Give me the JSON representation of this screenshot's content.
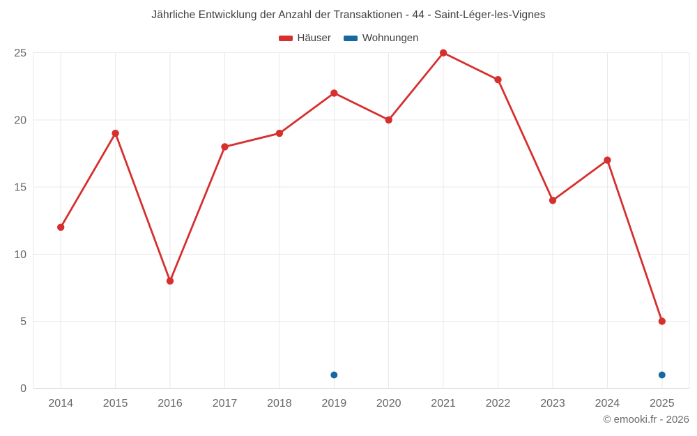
{
  "chart_data": {
    "type": "line",
    "title": "Jährliche Entwicklung der Anzahl der Transaktionen - 44 - Saint-Léger-les-Vignes",
    "footer": "© emooki.fr - 2026",
    "x": [
      2014,
      2015,
      2016,
      2017,
      2018,
      2019,
      2020,
      2021,
      2022,
      2023,
      2024,
      2025
    ],
    "series": [
      {
        "name": "Häuser",
        "color": "#d62f2e",
        "values": [
          12,
          19,
          8,
          18,
          19,
          22,
          20,
          25,
          23,
          14,
          17,
          5
        ]
      },
      {
        "name": "Wohnungen",
        "color": "#1668a0",
        "values": [
          null,
          null,
          null,
          null,
          null,
          1,
          null,
          null,
          null,
          null,
          null,
          1
        ]
      }
    ],
    "xlabel": "",
    "ylabel": "",
    "ylim": [
      0,
      25
    ],
    "yticks": [
      0,
      5,
      10,
      15,
      20,
      25
    ],
    "grid": true,
    "legend_position": "top",
    "colors": {
      "grid_line": "#e9e9e9",
      "axis_line": "#d2d2d2",
      "tick_label": "#666666",
      "title_text": "#3e3e3e"
    }
  }
}
